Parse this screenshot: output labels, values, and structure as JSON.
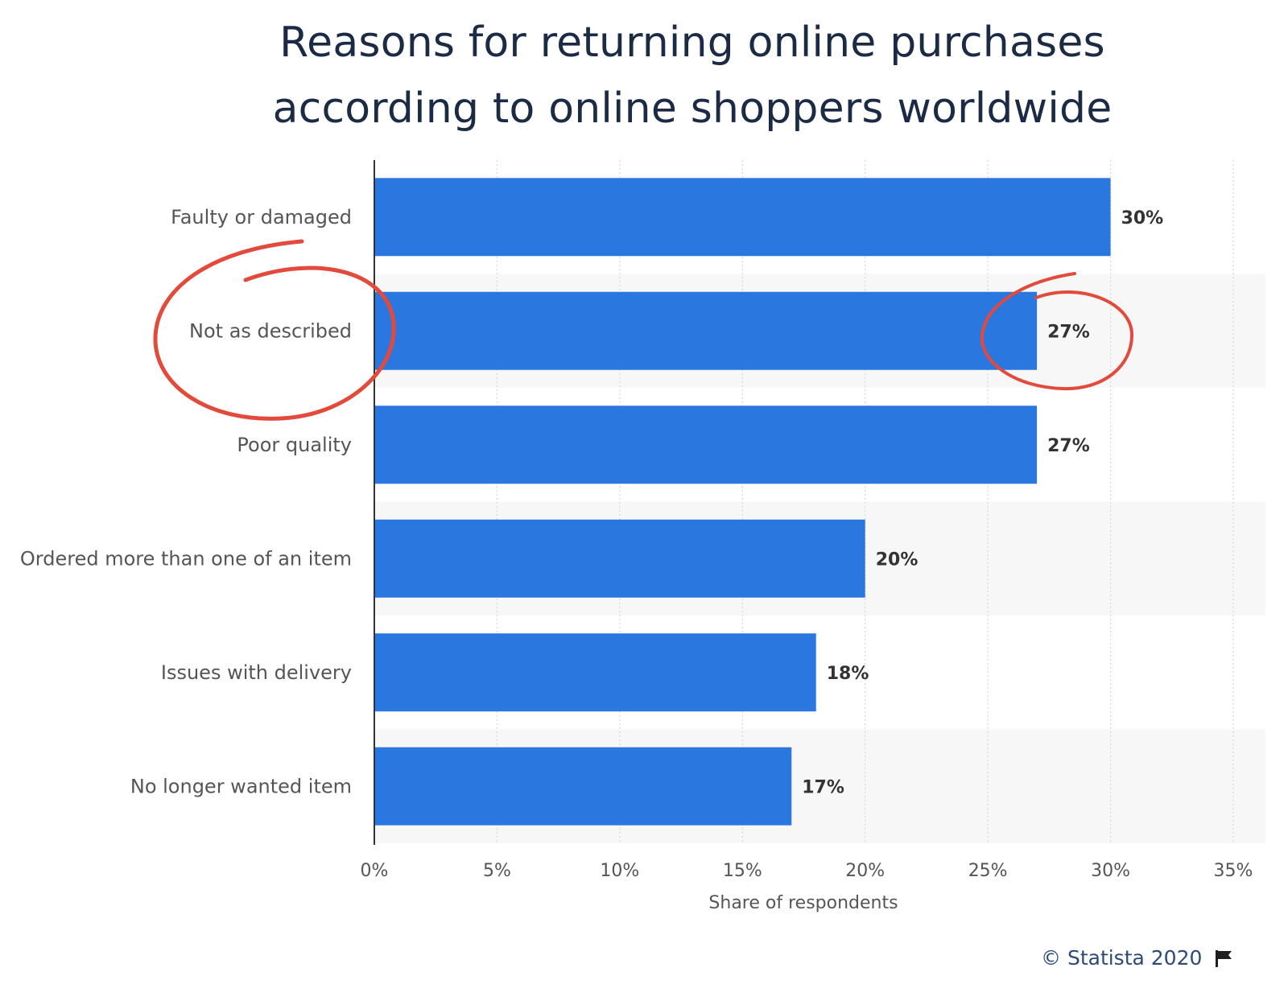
{
  "chart_data": {
    "type": "bar",
    "orientation": "horizontal",
    "title_lines": [
      "Reasons for returning online purchases",
      "according to online shoppers worldwide"
    ],
    "categories": [
      "Faulty or damaged",
      "Not as described",
      "Poor quality",
      "Ordered more than one of an item",
      "Issues with delivery",
      "No longer wanted item"
    ],
    "values": [
      30,
      27,
      27,
      20,
      18,
      17
    ],
    "value_labels": [
      "30%",
      "27%",
      "27%",
      "20%",
      "18%",
      "17%"
    ],
    "xlabel": "Share of respondents",
    "xlim": [
      0,
      35
    ],
    "xticks": [
      "0%",
      "5%",
      "10%",
      "15%",
      "20%",
      "25%",
      "30%",
      "35%"
    ],
    "grid": true,
    "bar_color": "#2a77e0",
    "annotations": [
      {
        "type": "circle",
        "target": "category",
        "index": 1,
        "color": "#e24a3b"
      },
      {
        "type": "circle",
        "target": "value_label",
        "index": 1,
        "color": "#e24a3b"
      }
    ]
  },
  "credit": "© Statista 2020"
}
